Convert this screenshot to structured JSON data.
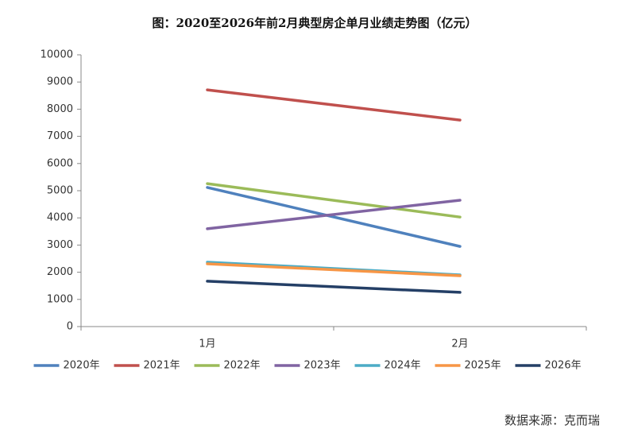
{
  "chart_data": {
    "type": "line",
    "title": "图：2020至2026年前2月典型房企单月业绩走势图（亿元）",
    "source": "数据来源：克而瑞",
    "categories": [
      "1月",
      "2月"
    ],
    "series": [
      {
        "name": "2020年",
        "color": "#4f81bd",
        "values": [
          5120,
          2950
        ]
      },
      {
        "name": "2021年",
        "color": "#c0504d",
        "values": [
          8710,
          7600
        ]
      },
      {
        "name": "2022年",
        "color": "#9bbb59",
        "values": [
          5260,
          4030
        ]
      },
      {
        "name": "2023年",
        "color": "#8064a2",
        "values": [
          3600,
          4650
        ]
      },
      {
        "name": "2024年",
        "color": "#4bacc6",
        "values": [
          2370,
          1900
        ]
      },
      {
        "name": "2025年",
        "color": "#f79646",
        "values": [
          2310,
          1870
        ]
      },
      {
        "name": "2026年",
        "color": "#243f66",
        "values": [
          1670,
          1260
        ]
      }
    ],
    "ylim": [
      0,
      10000
    ],
    "yticks": [
      0,
      1000,
      2000,
      3000,
      4000,
      5000,
      6000,
      7000,
      8000,
      9000,
      10000
    ],
    "grid": false,
    "legend": "bottom"
  }
}
